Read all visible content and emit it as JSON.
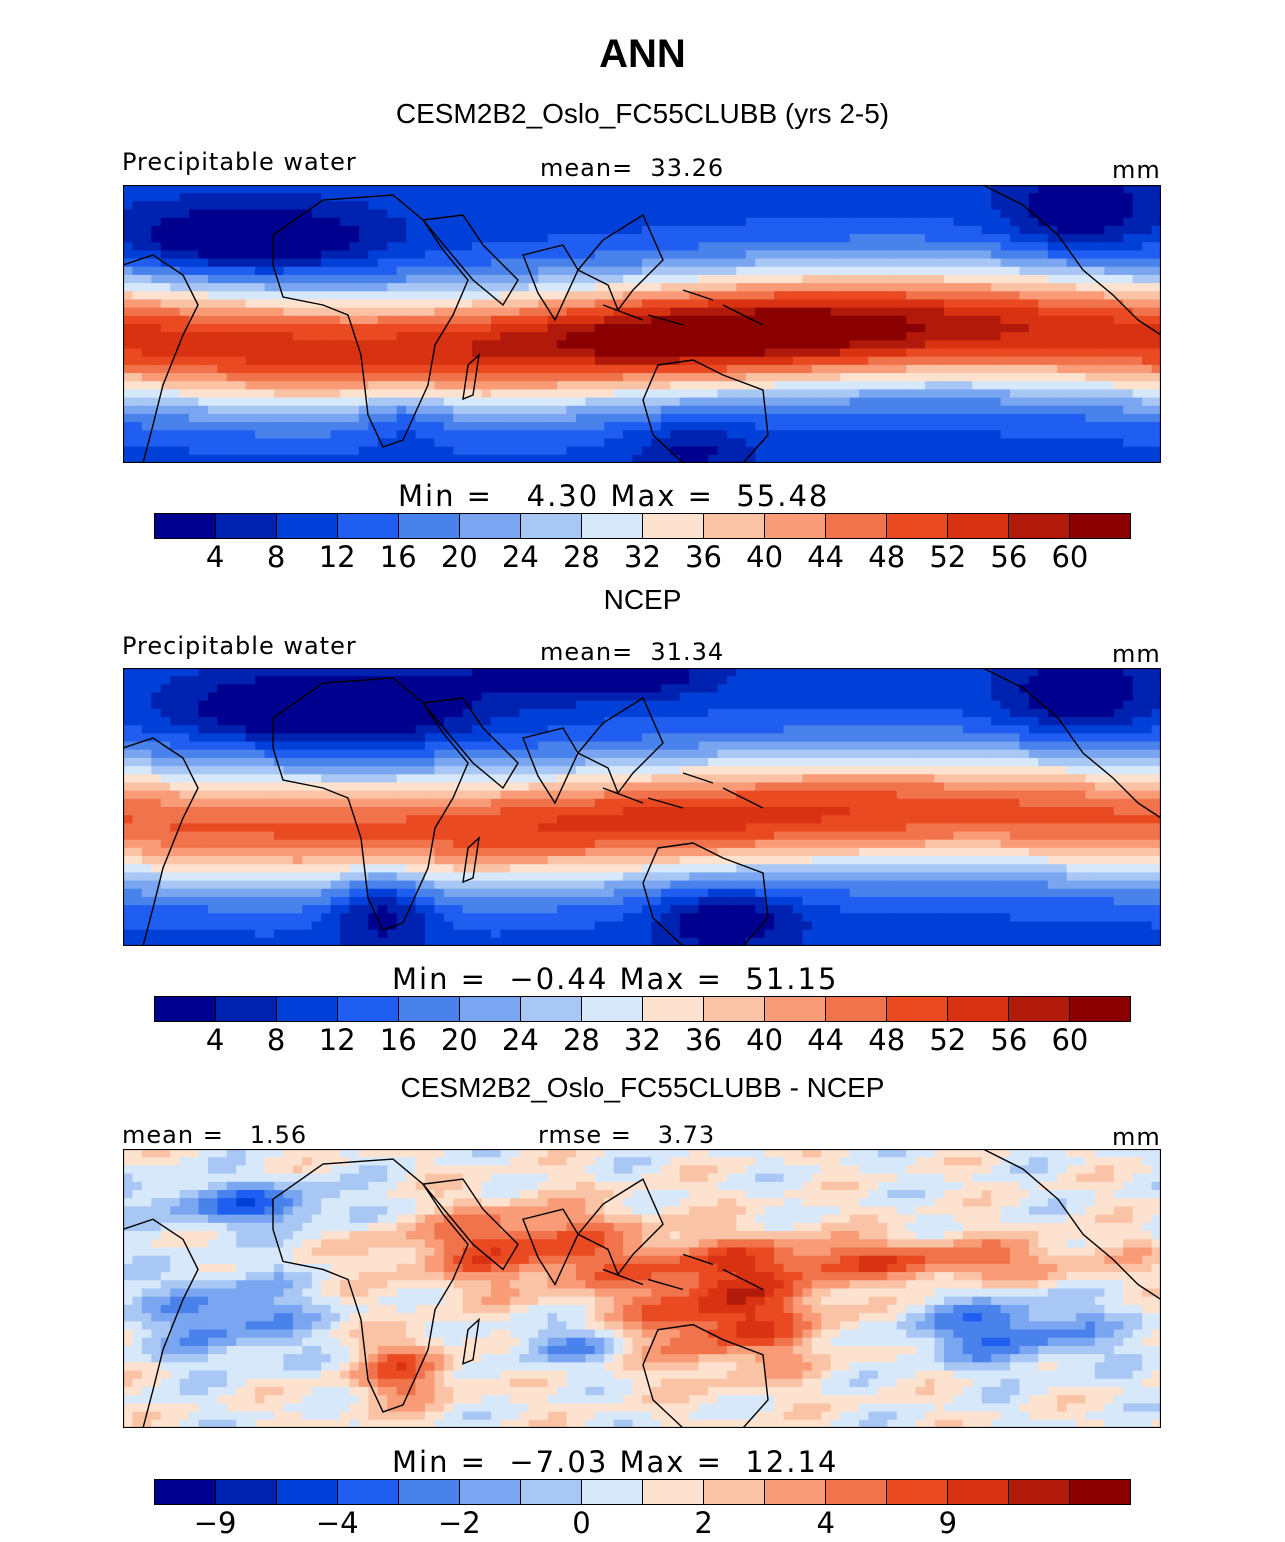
{
  "page": {
    "title": "ANN"
  },
  "colors": [
    "#00008f",
    "#0022b0",
    "#0040d8",
    "#1f5ef0",
    "#4a82ec",
    "#7aa5f0",
    "#a9c7f4",
    "#d7e8fa",
    "#fde3cf",
    "#fbc3a6",
    "#f89b76",
    "#f1734c",
    "#ea4a22",
    "#d83212",
    "#b11a0a",
    "#8a0000"
  ],
  "chart_data": [
    {
      "type": "heatmap",
      "panel_title": "CESM2B2_Oslo_FC55CLUBB (yrs 2-5)",
      "left_label": "Precipitable water",
      "center_label": "mean=  33.26",
      "right_label": "mm",
      "stats_label": "Min =   4.30 Max =  55.48",
      "mean": 33.26,
      "min": 4.3,
      "max": 55.48,
      "colorbar_ticks": [
        "4",
        "8",
        "12",
        "16",
        "20",
        "24",
        "28",
        "32",
        "36",
        "40",
        "44",
        "48",
        "52",
        "56",
        "60"
      ]
    },
    {
      "type": "heatmap",
      "panel_title": "NCEP",
      "left_label": "Precipitable water",
      "center_label": "mean=  31.34",
      "right_label": "mm",
      "stats_label": "Min =  −0.44 Max =  51.15",
      "mean": 31.34,
      "min": -0.44,
      "max": 51.15,
      "colorbar_ticks": [
        "4",
        "8",
        "12",
        "16",
        "20",
        "24",
        "28",
        "32",
        "36",
        "40",
        "44",
        "48",
        "52",
        "56",
        "60"
      ]
    },
    {
      "type": "heatmap",
      "panel_title": "CESM2B2_Oslo_FC55CLUBB - NCEP",
      "left_label": "mean =   1.56",
      "center_label": "rmse =   3.73",
      "right_label": "mm",
      "stats_label": "Min =  −7.03 Max =  12.14",
      "mean": 1.56,
      "rmse": 3.73,
      "min": -7.03,
      "max": 12.14,
      "colorbar_ticks": [
        "−9",
        "",
        "−4",
        "",
        "−2",
        "",
        "0",
        "",
        "2",
        "",
        "4",
        "",
        "9"
      ]
    }
  ]
}
